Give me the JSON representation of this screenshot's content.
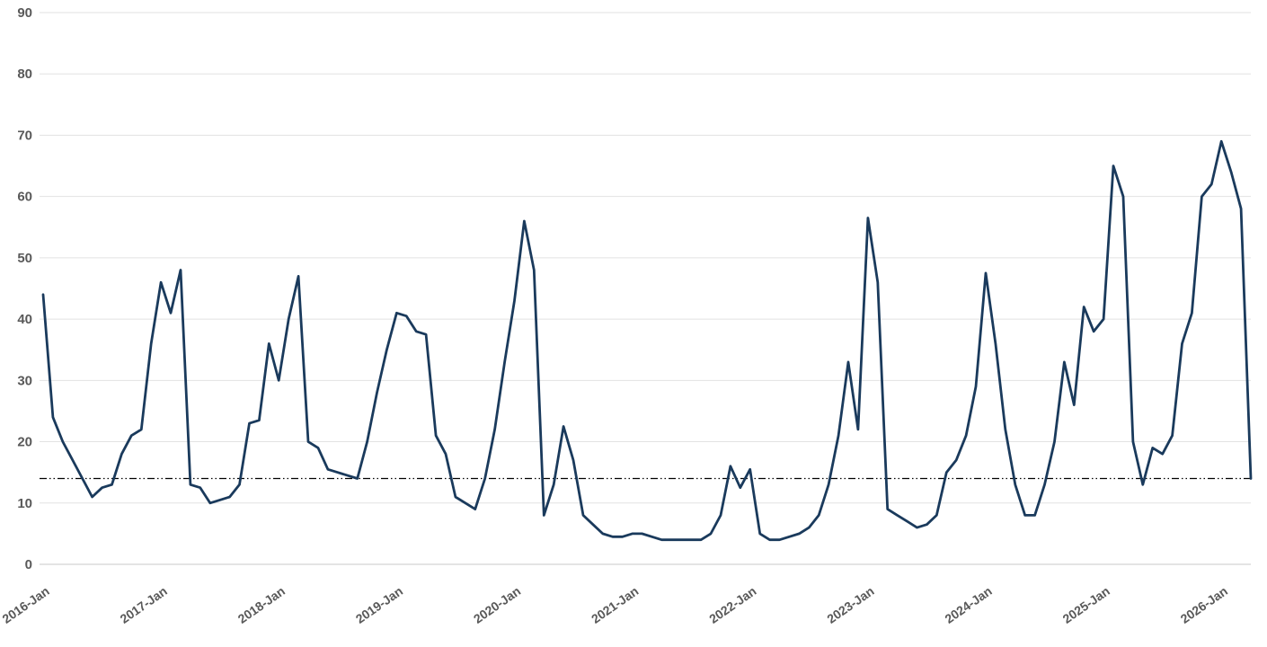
{
  "chart": {
    "aria_label": "Monthly time-series line chart, 2016-Jan to 2026-Jan"
  },
  "chart_data": {
    "type": "line",
    "title": "",
    "xlabel": "",
    "ylabel": "",
    "ylim": [
      0,
      90
    ],
    "grid": true,
    "legend": false,
    "background": "#ffffff",
    "grid_color": "#e2e2e2",
    "axis_line_color": "#c9c9c9",
    "tick_label_color": "#595959",
    "y_ticks": [
      0,
      10,
      20,
      30,
      40,
      50,
      60,
      70,
      80,
      90
    ],
    "x_tick_labels": [
      "2016-Jan",
      "2017-Jan",
      "2018-Jan",
      "2019-Jan",
      "2020-Jan",
      "2021-Jan",
      "2022-Jan",
      "2023-Jan",
      "2024-Jan",
      "2025-Jan",
      "2026-Jan"
    ],
    "x_tick_month_indices": [
      0,
      12,
      24,
      36,
      48,
      60,
      72,
      84,
      96,
      108,
      120
    ],
    "reference_line": {
      "value": 14,
      "color": "#000000",
      "style": "dash-dot-dot"
    },
    "x": [
      "2016-01",
      "2016-02",
      "2016-03",
      "2016-04",
      "2016-05",
      "2016-06",
      "2016-07",
      "2016-08",
      "2016-09",
      "2016-10",
      "2016-11",
      "2016-12",
      "2017-01",
      "2017-02",
      "2017-03",
      "2017-04",
      "2017-05",
      "2017-06",
      "2017-07",
      "2017-08",
      "2017-09",
      "2017-10",
      "2017-11",
      "2017-12",
      "2018-01",
      "2018-02",
      "2018-03",
      "2018-04",
      "2018-05",
      "2018-06",
      "2018-07",
      "2018-08",
      "2018-09",
      "2018-10",
      "2018-11",
      "2018-12",
      "2019-01",
      "2019-02",
      "2019-03",
      "2019-04",
      "2019-05",
      "2019-06",
      "2019-07",
      "2019-08",
      "2019-09",
      "2019-10",
      "2019-11",
      "2019-12",
      "2020-01",
      "2020-02",
      "2020-03",
      "2020-04",
      "2020-05",
      "2020-06",
      "2020-07",
      "2020-08",
      "2020-09",
      "2020-10",
      "2020-11",
      "2020-12",
      "2021-01",
      "2021-02",
      "2021-03",
      "2021-04",
      "2021-05",
      "2021-06",
      "2021-07",
      "2021-08",
      "2021-09",
      "2021-10",
      "2021-11",
      "2021-12",
      "2022-01",
      "2022-02",
      "2022-03",
      "2022-04",
      "2022-05",
      "2022-06",
      "2022-07",
      "2022-08",
      "2022-09",
      "2022-10",
      "2022-11",
      "2022-12",
      "2023-01",
      "2023-02",
      "2023-03",
      "2023-04",
      "2023-05",
      "2023-06",
      "2023-07",
      "2023-08",
      "2023-09",
      "2023-10",
      "2023-11",
      "2023-12",
      "2024-01",
      "2024-02",
      "2024-03",
      "2024-04",
      "2024-05",
      "2024-06",
      "2024-07",
      "2024-08",
      "2024-09",
      "2024-10",
      "2024-11",
      "2024-12",
      "2025-01",
      "2025-02",
      "2025-03",
      "2025-04",
      "2025-05",
      "2025-06",
      "2025-07",
      "2025-08",
      "2025-09",
      "2025-10",
      "2025-11",
      "2025-12",
      "2026-01",
      "2026-02",
      "2026-03",
      "2026-04"
    ],
    "series": [
      {
        "name": "value",
        "color": "#1a3a5c",
        "stroke_width": 2.8,
        "values": [
          44,
          24,
          20,
          17,
          14,
          11,
          12.5,
          13,
          18,
          21,
          22,
          36,
          46,
          41,
          48,
          13,
          12.5,
          10,
          10.5,
          11,
          13,
          23,
          23.5,
          36,
          30,
          40,
          47,
          20,
          19,
          15.5,
          15,
          14.5,
          14,
          20,
          28,
          35,
          41,
          40.5,
          38,
          37.5,
          21,
          18,
          11,
          10,
          9,
          14,
          22,
          33,
          43,
          56,
          48,
          8,
          13,
          22.5,
          17,
          8,
          6.5,
          5,
          4.5,
          4.5,
          5,
          5,
          4.5,
          4,
          4,
          4,
          4,
          4,
          5,
          8,
          16,
          12.5,
          15.5,
          5,
          4,
          4,
          4.5,
          5,
          6,
          8,
          13,
          21,
          33,
          22,
          56.5,
          46,
          9,
          8,
          7,
          6,
          6.5,
          8,
          15,
          17,
          21,
          29,
          47.5,
          36,
          22,
          13,
          8,
          8,
          13,
          20,
          33,
          26,
          42,
          38,
          40,
          65,
          60,
          20,
          13,
          19,
          18,
          21,
          36,
          41,
          60,
          62,
          69,
          64,
          58,
          14
        ]
      }
    ]
  }
}
